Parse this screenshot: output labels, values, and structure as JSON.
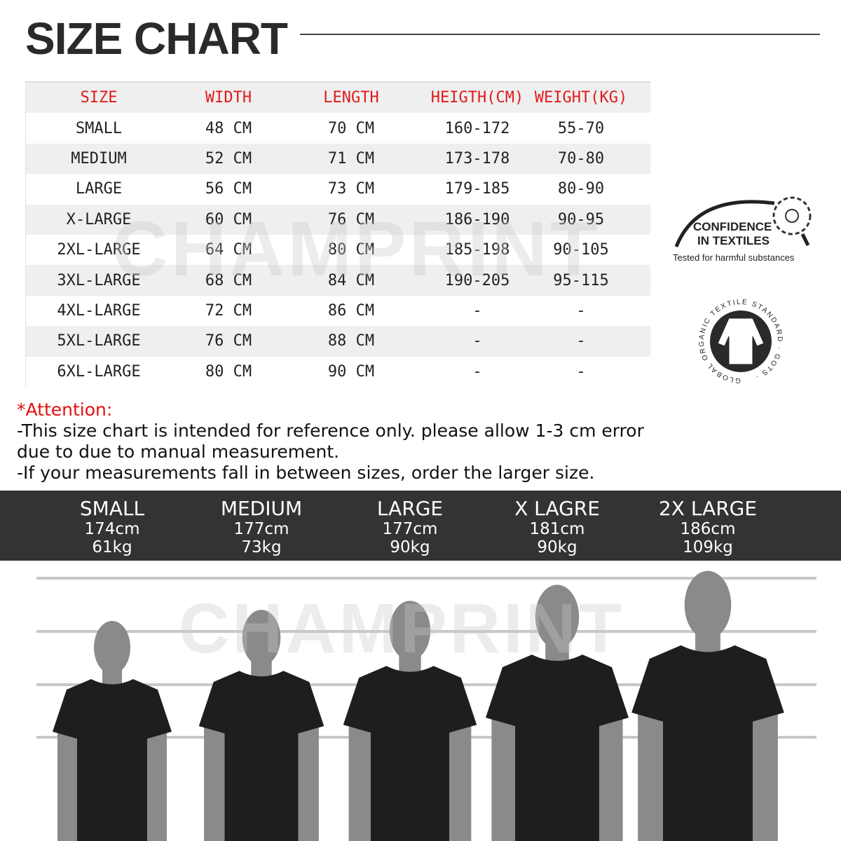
{
  "title": "SIZE CHART",
  "watermark": "CHAMPRINT",
  "table": {
    "headers": [
      "SIZE",
      "WIDTH",
      "LENGTH",
      "HEIGTH(CM)",
      "WEIGHT(KG)"
    ],
    "rows": [
      [
        "SMALL",
        "48 CM",
        "70 CM",
        "160-172",
        "55-70"
      ],
      [
        "MEDIUM",
        "52 CM",
        "71 CM",
        "173-178",
        "70-80"
      ],
      [
        "LARGE",
        "56 CM",
        "73 CM",
        "179-185",
        "80-90"
      ],
      [
        "X-LARGE",
        "60 CM",
        "76 CM",
        "186-190",
        "90-95"
      ],
      [
        "2XL-LARGE",
        "64 CM",
        "80 CM",
        "185-198",
        "90-105"
      ],
      [
        "3XL-LARGE",
        "68 CM",
        "84 CM",
        "190-205",
        "95-115"
      ],
      [
        "4XL-LARGE",
        "72 CM",
        "86 CM",
        "-",
        "-"
      ],
      [
        "5XL-LARGE",
        "76 CM",
        "88 CM",
        "-",
        "-"
      ],
      [
        "6XL-LARGE",
        "80 CM",
        "90 CM",
        "-",
        "-"
      ]
    ]
  },
  "logos": {
    "oeko": {
      "line1": "CONFIDENCE",
      "line2": "IN TEXTILES",
      "line3": "Tested for harmful substances"
    },
    "gots": {
      "text": "GLOBAL ORGANIC TEXTILE STANDARD · GOTS ·"
    }
  },
  "attention": {
    "heading": "*Attention:",
    "line1": "-This size chart is intended for reference only. please allow 1-3 cm error",
    "line2": "due to due to manual measurement.",
    "line3": "-If your measurements fall in between sizes, order the larger size."
  },
  "models": [
    {
      "size": "SMALL",
      "height": "174cm",
      "weight": "61kg"
    },
    {
      "size": "MEDIUM",
      "height": "177cm",
      "weight": "73kg"
    },
    {
      "size": "LARGE",
      "height": "177cm",
      "weight": "90kg"
    },
    {
      "size": "X LAGRE",
      "height": "181cm",
      "weight": "90kg"
    },
    {
      "size": "2X LARGE",
      "height": "186cm",
      "weight": "109kg"
    }
  ],
  "colors": {
    "header_text": "#e01b1b",
    "attention": "#e31010",
    "band": "#333333",
    "shirt": "#1e1e1e",
    "silhouette": "#8a8a8a"
  }
}
